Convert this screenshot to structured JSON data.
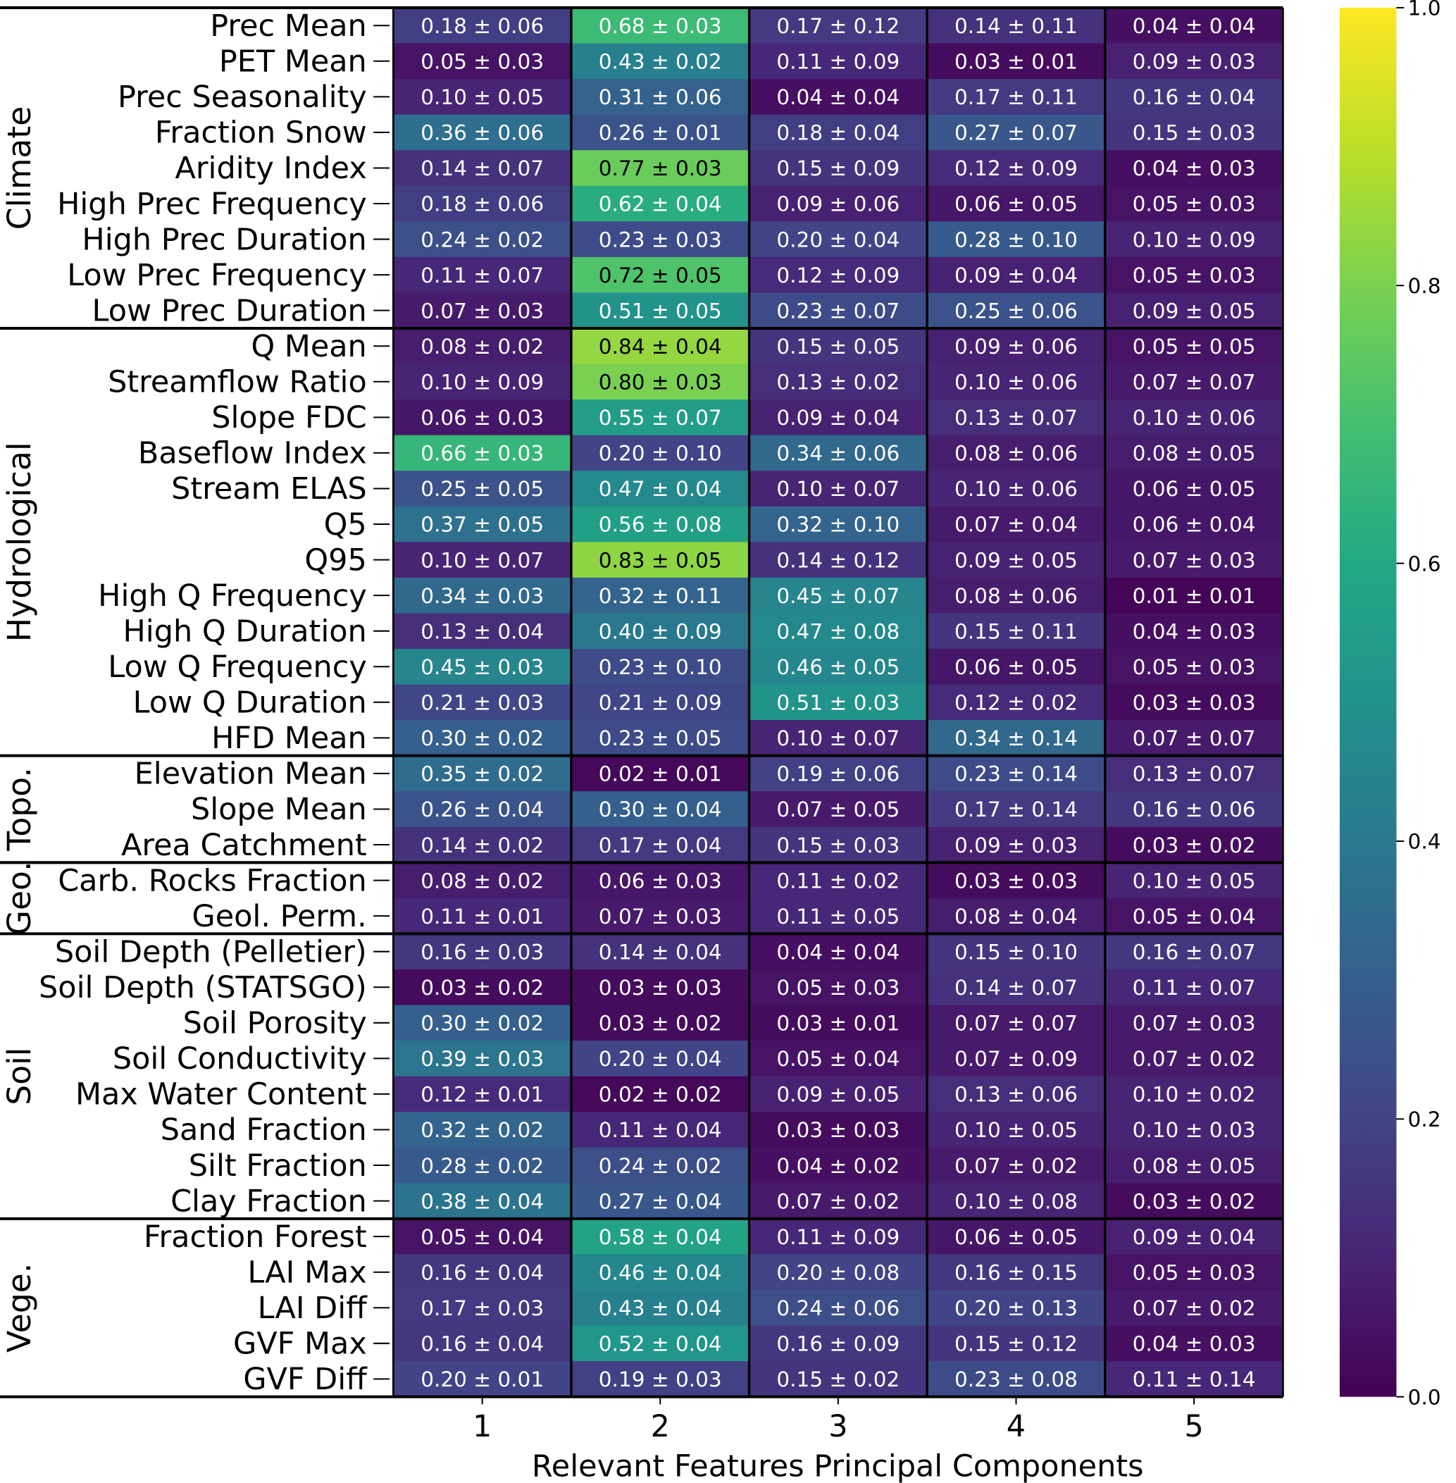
{
  "chart_data": {
    "type": "heatmap",
    "title": "",
    "xlabel": "Relevant Features Principal Components",
    "ylabel": "",
    "x_categories": [
      "1",
      "2",
      "3",
      "4",
      "5"
    ],
    "colormap": "viridis",
    "color_range": [
      0.0,
      1.0
    ],
    "colorbar_ticks": [
      "0.0",
      "0.2",
      "0.4",
      "0.6",
      "0.8",
      "1.0"
    ],
    "cell_format": "mean ± std",
    "groups": [
      {
        "name": "Climate",
        "rows": [
          {
            "label": "Prec Mean",
            "mean": [
              0.18,
              0.68,
              0.17,
              0.14,
              0.04
            ],
            "std": [
              0.06,
              0.03,
              0.12,
              0.11,
              0.04
            ]
          },
          {
            "label": "PET Mean",
            "mean": [
              0.05,
              0.43,
              0.11,
              0.03,
              0.09
            ],
            "std": [
              0.03,
              0.02,
              0.09,
              0.01,
              0.03
            ]
          },
          {
            "label": "Prec Seasonality",
            "mean": [
              0.1,
              0.31,
              0.04,
              0.17,
              0.16
            ],
            "std": [
              0.05,
              0.06,
              0.04,
              0.11,
              0.04
            ]
          },
          {
            "label": "Fraction Snow",
            "mean": [
              0.36,
              0.26,
              0.18,
              0.27,
              0.15
            ],
            "std": [
              0.06,
              0.01,
              0.04,
              0.07,
              0.03
            ]
          },
          {
            "label": "Aridity Index",
            "mean": [
              0.14,
              0.77,
              0.15,
              0.12,
              0.04
            ],
            "std": [
              0.07,
              0.03,
              0.09,
              0.09,
              0.03
            ]
          },
          {
            "label": "High Prec Frequency",
            "mean": [
              0.18,
              0.62,
              0.09,
              0.06,
              0.05
            ],
            "std": [
              0.06,
              0.04,
              0.06,
              0.05,
              0.03
            ]
          },
          {
            "label": "High Prec Duration",
            "mean": [
              0.24,
              0.23,
              0.2,
              0.28,
              0.1
            ],
            "std": [
              0.02,
              0.03,
              0.04,
              0.1,
              0.09
            ]
          },
          {
            "label": "Low Prec Frequency",
            "mean": [
              0.11,
              0.72,
              0.12,
              0.09,
              0.05
            ],
            "std": [
              0.07,
              0.05,
              0.09,
              0.04,
              0.03
            ]
          },
          {
            "label": "Low Prec Duration",
            "mean": [
              0.07,
              0.51,
              0.23,
              0.25,
              0.09
            ],
            "std": [
              0.03,
              0.05,
              0.07,
              0.06,
              0.05
            ]
          }
        ]
      },
      {
        "name": "Hydrological",
        "rows": [
          {
            "label": "Q Mean",
            "mean": [
              0.08,
              0.84,
              0.15,
              0.09,
              0.05
            ],
            "std": [
              0.02,
              0.04,
              0.05,
              0.06,
              0.05
            ]
          },
          {
            "label": "Streamflow Ratio",
            "mean": [
              0.1,
              0.8,
              0.13,
              0.1,
              0.07
            ],
            "std": [
              0.09,
              0.03,
              0.02,
              0.06,
              0.07
            ]
          },
          {
            "label": "Slope FDC",
            "mean": [
              0.06,
              0.55,
              0.09,
              0.13,
              0.1
            ],
            "std": [
              0.03,
              0.07,
              0.04,
              0.07,
              0.06
            ]
          },
          {
            "label": "Baseflow Index",
            "mean": [
              0.66,
              0.2,
              0.34,
              0.08,
              0.08
            ],
            "std": [
              0.03,
              0.1,
              0.06,
              0.06,
              0.05
            ]
          },
          {
            "label": "Stream ELAS",
            "mean": [
              0.25,
              0.47,
              0.1,
              0.1,
              0.06
            ],
            "std": [
              0.05,
              0.04,
              0.07,
              0.06,
              0.05
            ]
          },
          {
            "label": "Q5",
            "mean": [
              0.37,
              0.56,
              0.32,
              0.07,
              0.06
            ],
            "std": [
              0.05,
              0.08,
              0.1,
              0.04,
              0.04
            ]
          },
          {
            "label": "Q95",
            "mean": [
              0.1,
              0.83,
              0.14,
              0.09,
              0.07
            ],
            "std": [
              0.07,
              0.05,
              0.12,
              0.05,
              0.03
            ]
          },
          {
            "label": "High Q Frequency",
            "mean": [
              0.34,
              0.32,
              0.45,
              0.08,
              0.01
            ],
            "std": [
              0.03,
              0.11,
              0.07,
              0.06,
              0.01
            ]
          },
          {
            "label": "High Q Duration",
            "mean": [
              0.13,
              0.4,
              0.47,
              0.15,
              0.04
            ],
            "std": [
              0.04,
              0.09,
              0.08,
              0.11,
              0.03
            ]
          },
          {
            "label": "Low Q Frequency",
            "mean": [
              0.45,
              0.23,
              0.46,
              0.06,
              0.05
            ],
            "std": [
              0.03,
              0.1,
              0.05,
              0.05,
              0.03
            ]
          },
          {
            "label": "Low Q Duration",
            "mean": [
              0.21,
              0.21,
              0.51,
              0.12,
              0.03
            ],
            "std": [
              0.03,
              0.09,
              0.03,
              0.02,
              0.03
            ]
          },
          {
            "label": "HFD Mean",
            "mean": [
              0.3,
              0.23,
              0.1,
              0.34,
              0.07
            ],
            "std": [
              0.02,
              0.05,
              0.07,
              0.14,
              0.07
            ]
          }
        ]
      },
      {
        "name": "Topo.",
        "rows": [
          {
            "label": "Elevation Mean",
            "mean": [
              0.35,
              0.02,
              0.19,
              0.23,
              0.13
            ],
            "std": [
              0.02,
              0.01,
              0.06,
              0.14,
              0.07
            ]
          },
          {
            "label": "Slope Mean",
            "mean": [
              0.26,
              0.3,
              0.07,
              0.17,
              0.16
            ],
            "std": [
              0.04,
              0.04,
              0.05,
              0.14,
              0.06
            ]
          },
          {
            "label": "Area Catchment",
            "mean": [
              0.14,
              0.17,
              0.15,
              0.09,
              0.03
            ],
            "std": [
              0.02,
              0.04,
              0.03,
              0.03,
              0.02
            ]
          }
        ]
      },
      {
        "name": "Geo.",
        "rows": [
          {
            "label": "Carb. Rocks Fraction",
            "mean": [
              0.08,
              0.06,
              0.11,
              0.03,
              0.1
            ],
            "std": [
              0.02,
              0.03,
              0.02,
              0.03,
              0.05
            ]
          },
          {
            "label": "Geol. Perm.",
            "mean": [
              0.11,
              0.07,
              0.11,
              0.08,
              0.05
            ],
            "std": [
              0.01,
              0.03,
              0.05,
              0.04,
              0.04
            ]
          }
        ]
      },
      {
        "name": "Soil",
        "rows": [
          {
            "label": "Soil Depth (Pelletier)",
            "mean": [
              0.16,
              0.14,
              0.04,
              0.15,
              0.16
            ],
            "std": [
              0.03,
              0.04,
              0.04,
              0.1,
              0.07
            ]
          },
          {
            "label": "Soil Depth (STATSGO)",
            "mean": [
              0.03,
              0.03,
              0.05,
              0.14,
              0.11
            ],
            "std": [
              0.02,
              0.03,
              0.03,
              0.07,
              0.07
            ]
          },
          {
            "label": "Soil Porosity",
            "mean": [
              0.3,
              0.03,
              0.03,
              0.07,
              0.07
            ],
            "std": [
              0.02,
              0.02,
              0.01,
              0.07,
              0.03
            ]
          },
          {
            "label": "Soil Conductivity",
            "mean": [
              0.39,
              0.2,
              0.05,
              0.07,
              0.07
            ],
            "std": [
              0.03,
              0.04,
              0.04,
              0.09,
              0.02
            ]
          },
          {
            "label": "Max Water Content",
            "mean": [
              0.12,
              0.02,
              0.09,
              0.13,
              0.1
            ],
            "std": [
              0.01,
              0.02,
              0.05,
              0.06,
              0.02
            ]
          },
          {
            "label": "Sand Fraction",
            "mean": [
              0.32,
              0.11,
              0.03,
              0.1,
              0.1
            ],
            "std": [
              0.02,
              0.04,
              0.03,
              0.05,
              0.03
            ]
          },
          {
            "label": "Silt Fraction",
            "mean": [
              0.28,
              0.24,
              0.04,
              0.07,
              0.08
            ],
            "std": [
              0.02,
              0.02,
              0.02,
              0.02,
              0.05
            ]
          },
          {
            "label": "Clay Fraction",
            "mean": [
              0.38,
              0.27,
              0.07,
              0.1,
              0.03
            ],
            "std": [
              0.04,
              0.04,
              0.02,
              0.08,
              0.02
            ]
          }
        ]
      },
      {
        "name": "Vege.",
        "rows": [
          {
            "label": "Fraction Forest",
            "mean": [
              0.05,
              0.58,
              0.11,
              0.06,
              0.09
            ],
            "std": [
              0.04,
              0.04,
              0.09,
              0.05,
              0.04
            ]
          },
          {
            "label": "LAI Max",
            "mean": [
              0.16,
              0.46,
              0.2,
              0.16,
              0.05
            ],
            "std": [
              0.04,
              0.04,
              0.08,
              0.15,
              0.03
            ]
          },
          {
            "label": "LAI Diff",
            "mean": [
              0.17,
              0.43,
              0.24,
              0.2,
              0.07
            ],
            "std": [
              0.03,
              0.04,
              0.06,
              0.13,
              0.02
            ]
          },
          {
            "label": "GVF Max",
            "mean": [
              0.16,
              0.52,
              0.16,
              0.15,
              0.04
            ],
            "std": [
              0.04,
              0.04,
              0.09,
              0.12,
              0.03
            ]
          },
          {
            "label": "GVF Diff",
            "mean": [
              0.2,
              0.19,
              0.15,
              0.23,
              0.11
            ],
            "std": [
              0.01,
              0.03,
              0.02,
              0.08,
              0.14
            ]
          }
        ]
      }
    ]
  }
}
